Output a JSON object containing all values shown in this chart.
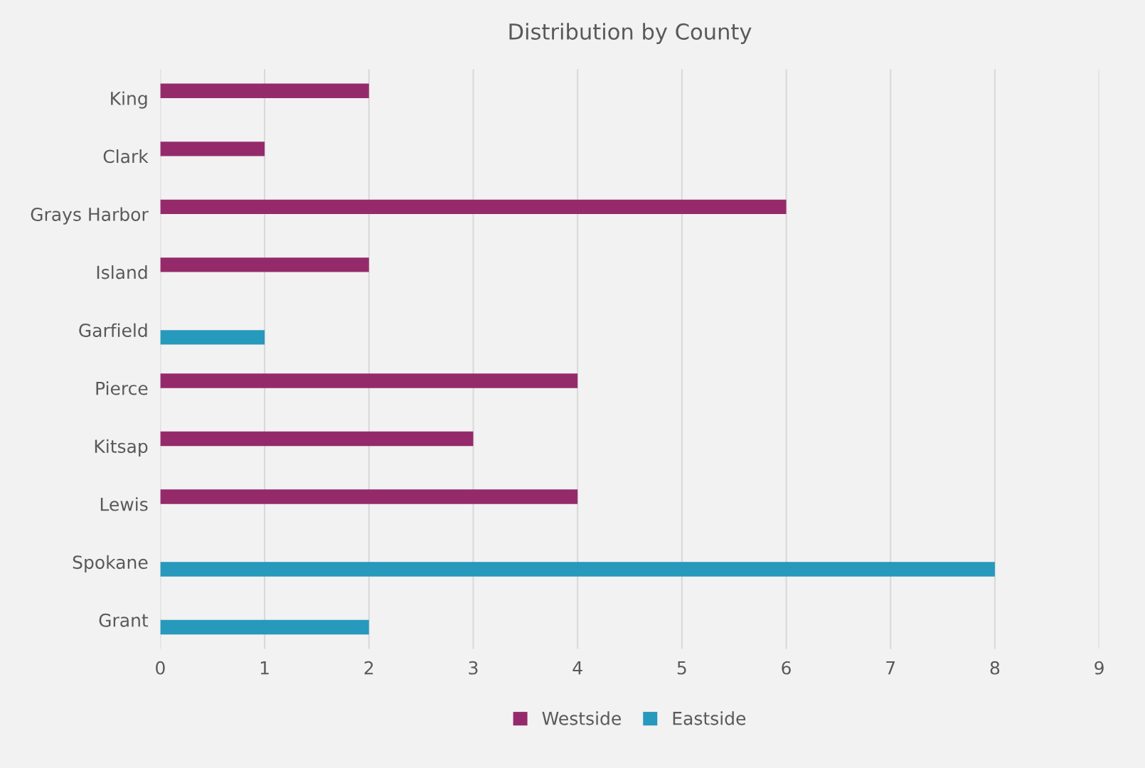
{
  "chart_data": {
    "type": "bar",
    "orientation": "horizontal",
    "title": "Distribution by County",
    "categories": [
      "King",
      "Clark",
      "Grays Harbor",
      "Island",
      "Garfield",
      "Pierce",
      "Kitsap",
      "Lewis",
      "Spokane",
      "Grant"
    ],
    "series": [
      {
        "name": "Westside",
        "color": "#952a6b",
        "values": [
          2,
          1,
          6,
          2,
          null,
          4,
          3,
          4,
          null,
          null
        ]
      },
      {
        "name": "Eastside",
        "color": "#2699bc",
        "values": [
          null,
          null,
          null,
          null,
          1,
          null,
          null,
          null,
          8,
          2
        ]
      }
    ],
    "xlim": [
      0,
      9
    ],
    "xticks": [
      0,
      1,
      2,
      3,
      4,
      5,
      6,
      7,
      8,
      9
    ],
    "grid": "x",
    "legend": "bottom"
  }
}
